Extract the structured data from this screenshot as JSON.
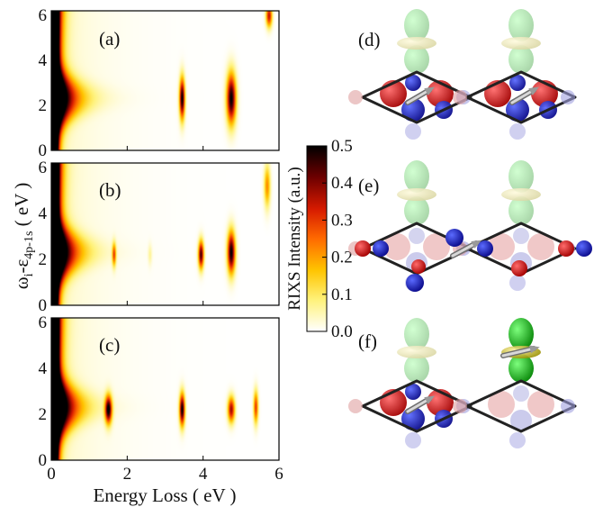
{
  "chart_data": {
    "type": "heatmap",
    "colorbar": {
      "label": "RIXS Intensity (a.u.)",
      "range": [
        0.0,
        0.5
      ],
      "ticks": [
        "0.5",
        "0.4",
        "0.3",
        "0.2",
        "0.1",
        "0.0"
      ],
      "colormap": [
        "#ffffff",
        "#fff27a",
        "#ffc400",
        "#ff6a00",
        "#d61a00",
        "#6e0000",
        "#000000"
      ]
    },
    "shared_xlabel": "Energy Loss ( eV )",
    "shared_ylabel": "ω_i-ε_4p-1s ( eV )",
    "ylabel_parts": {
      "main": "ω",
      "sub1": "i",
      "mid": "-ε",
      "sub2": "4p-1s",
      "tail": " ( eV )"
    },
    "x_ticks": [
      "0",
      "2",
      "4",
      "6"
    ],
    "y_ticks": [
      "0",
      "2",
      "4",
      "6"
    ],
    "xlim": [
      0,
      6
    ],
    "ylim": [
      0,
      6.2
    ],
    "panels": [
      {
        "label": "(a)",
        "edge": {
          "peak_x": 0.1,
          "intensity": 0.5
        },
        "features": [
          {
            "x": 3.45,
            "y": 2.3,
            "sx": 0.07,
            "sy": 0.9,
            "intensity": 0.5
          },
          {
            "x": 4.75,
            "y": 2.3,
            "sx": 0.12,
            "sy": 1.1,
            "intensity": 0.5
          },
          {
            "x": 5.75,
            "y": 6.0,
            "sx": 0.08,
            "sy": 0.5,
            "intensity": 0.35
          }
        ]
      },
      {
        "label": "(b)",
        "edge": {
          "peak_x": 0.1,
          "intensity": 0.5
        },
        "features": [
          {
            "x": 1.65,
            "y": 2.2,
            "sx": 0.05,
            "sy": 0.5,
            "intensity": 0.28
          },
          {
            "x": 2.6,
            "y": 2.2,
            "sx": 0.05,
            "sy": 0.45,
            "intensity": 0.06
          },
          {
            "x": 3.95,
            "y": 2.2,
            "sx": 0.07,
            "sy": 0.6,
            "intensity": 0.45
          },
          {
            "x": 4.75,
            "y": 2.3,
            "sx": 0.1,
            "sy": 0.9,
            "intensity": 0.5
          },
          {
            "x": 5.7,
            "y": 5.2,
            "sx": 0.08,
            "sy": 0.9,
            "intensity": 0.22
          }
        ]
      },
      {
        "label": "(c)",
        "edge": {
          "peak_x": 0.1,
          "intensity": 0.5
        },
        "features": [
          {
            "x": 1.5,
            "y": 2.2,
            "sx": 0.09,
            "sy": 0.6,
            "intensity": 0.5
          },
          {
            "x": 3.45,
            "y": 2.2,
            "sx": 0.07,
            "sy": 0.7,
            "intensity": 0.5
          },
          {
            "x": 4.75,
            "y": 2.2,
            "sx": 0.09,
            "sy": 0.55,
            "intensity": 0.38
          },
          {
            "x": 5.4,
            "y": 2.3,
            "sx": 0.06,
            "sy": 0.7,
            "intensity": 0.3
          }
        ]
      }
    ]
  },
  "diagrams": [
    {
      "label": "(d)"
    },
    {
      "label": "(e)"
    },
    {
      "label": "(f)"
    }
  ]
}
